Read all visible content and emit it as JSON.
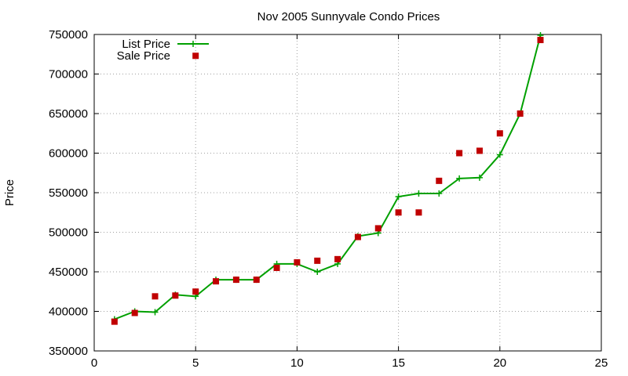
{
  "chart_data": {
    "type": "line",
    "title": "Nov 2005 Sunnyvale Condo Prices",
    "xlabel": "",
    "ylabel": "Price",
    "xlim": [
      0,
      25
    ],
    "ylim": [
      350000,
      750000
    ],
    "xticks": [
      0,
      5,
      10,
      15,
      20,
      25
    ],
    "yticks": [
      350000,
      400000,
      450000,
      500000,
      550000,
      600000,
      650000,
      700000,
      750000
    ],
    "grid": true,
    "legend_position": "top-left",
    "series": [
      {
        "name": "List Price",
        "style": "line+plus",
        "color": "#00a000",
        "x": [
          1,
          2,
          3,
          4,
          5,
          6,
          7,
          8,
          9,
          10,
          11,
          12,
          13,
          14,
          15,
          16,
          17,
          18,
          19,
          20,
          21,
          22
        ],
        "values": [
          390000,
          400000,
          399000,
          421000,
          419000,
          440000,
          440000,
          440000,
          460000,
          460000,
          450000,
          460000,
          495000,
          499000,
          545000,
          549000,
          549000,
          568000,
          569000,
          598000,
          650000,
          749000
        ]
      },
      {
        "name": "Sale Price",
        "style": "square-markers",
        "color": "#c00000",
        "x": [
          1,
          2,
          3,
          4,
          5,
          6,
          7,
          8,
          9,
          10,
          11,
          12,
          13,
          14,
          15,
          16,
          17,
          18,
          19,
          20,
          21,
          22,
          5
        ],
        "values": [
          387000,
          398000,
          419000,
          420000,
          425000,
          438000,
          440000,
          440000,
          455000,
          462000,
          464000,
          466000,
          494000,
          505000,
          525000,
          525000,
          565000,
          600000,
          603000,
          625000,
          650000,
          743000,
          723000
        ]
      }
    ]
  }
}
